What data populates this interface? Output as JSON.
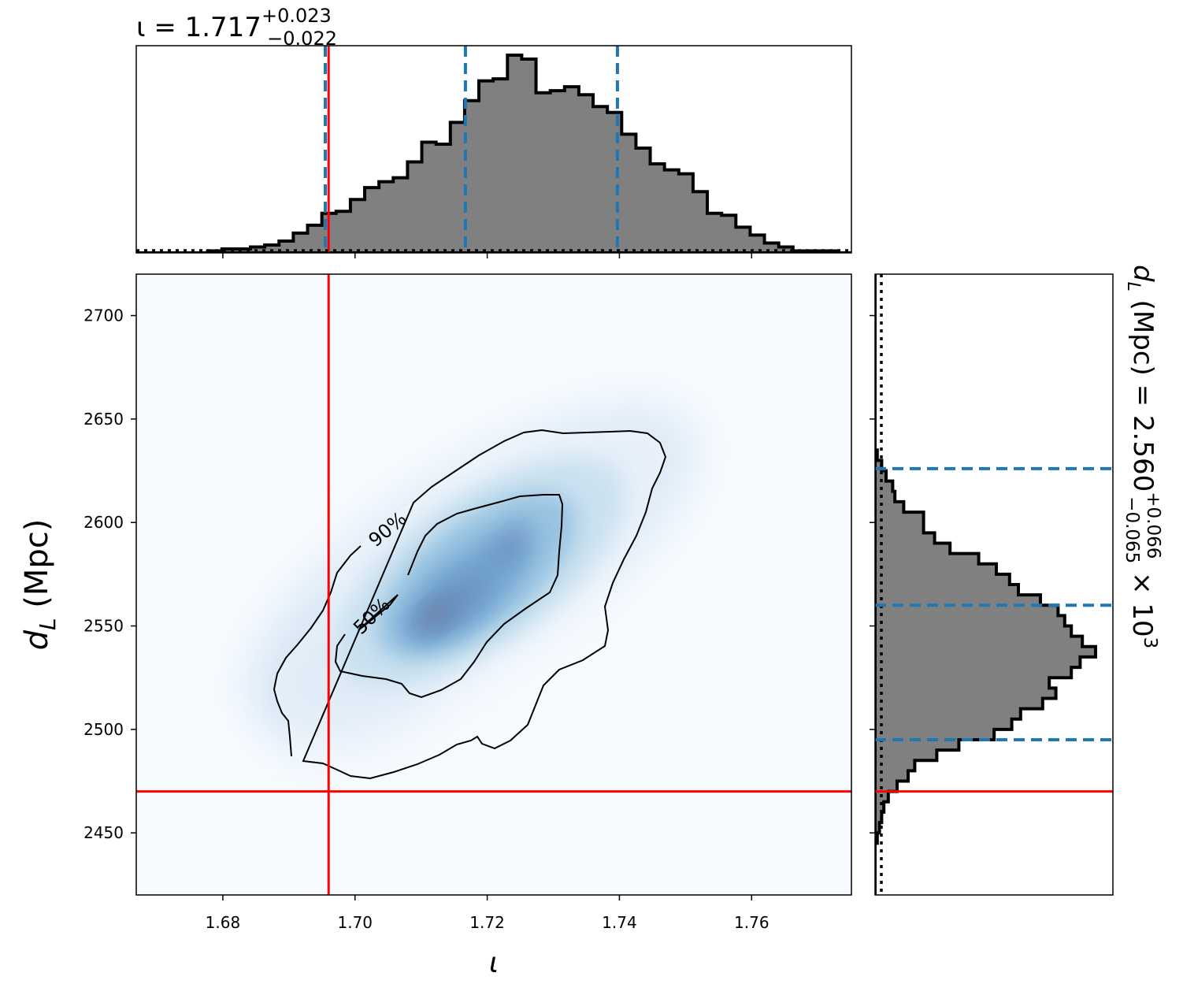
{
  "chart_data": {
    "type": "corner",
    "colors": {
      "truth": "#ff0000",
      "quantile": "#1f77b4",
      "hist_fill": "#808080",
      "hist_edge": "#000000",
      "density_low": "#f7fbff",
      "density_high": "#08306b",
      "contour": "#000000"
    },
    "top_title": {
      "prefix": "ι = 1.717",
      "sup": "+0.023",
      "sub": "−0.022"
    },
    "right_title": {
      "prefix": "d",
      "prefix_sub": "L",
      "mid": " (Mpc) = 2.560",
      "sup": "+0.066",
      "sub": "−0.065",
      "suffix": " × 10",
      "exp": "3"
    },
    "xlabel": "ι",
    "ylabel": {
      "main": "d",
      "sub": "L",
      "rest": " (Mpc)"
    },
    "xlim": [
      1.6669,
      1.7751
    ],
    "ylim": [
      2420,
      2720
    ],
    "xticks": [
      1.68,
      1.7,
      1.72,
      1.74,
      1.76
    ],
    "xtick_labels": [
      "1.68",
      "1.70",
      "1.72",
      "1.74",
      "1.76"
    ],
    "yticks": [
      2450,
      2500,
      2550,
      2600,
      2650,
      2700
    ],
    "ytick_labels": [
      "2450",
      "2500",
      "2550",
      "2600",
      "2650",
      "2700"
    ],
    "truth": {
      "iota": 1.696,
      "dL": 2470
    },
    "iota_quantiles": [
      1.6955,
      1.7167,
      1.7397
    ],
    "dL_quantiles": [
      2495,
      2560,
      2626
    ],
    "contour_labels": [
      "90%",
      "50%"
    ],
    "iota_hist": {
      "edges_start": 1.6669,
      "bin_width": 0.00216,
      "counts": [
        0,
        0,
        0,
        0,
        0,
        1,
        2,
        2,
        3,
        4,
        6,
        10,
        14,
        20,
        21,
        27,
        33,
        36,
        38,
        46,
        56,
        55,
        66,
        77,
        87,
        88,
        100,
        98,
        81,
        82,
        84,
        80,
        74,
        71,
        60,
        53,
        45,
        42,
        40,
        31,
        20,
        19,
        13,
        9,
        5,
        3,
        1,
        1,
        1,
        0,
        0
      ]
    },
    "dL_hist": {
      "edges_start": 2420,
      "bin_width": 5,
      "counts": [
        0,
        0,
        0,
        0,
        0,
        1,
        2,
        3,
        4,
        6,
        10,
        15,
        18,
        28,
        38,
        54,
        62,
        66,
        76,
        82,
        79,
        89,
        93,
        100,
        94,
        89,
        86,
        83,
        75,
        65,
        61,
        55,
        47,
        34,
        27,
        22,
        22,
        13,
        9,
        8,
        5,
        3,
        1,
        0,
        0,
        0,
        0,
        0,
        0,
        0,
        0,
        0,
        0,
        0,
        0,
        0,
        0,
        0,
        0,
        0
      ]
    }
  }
}
